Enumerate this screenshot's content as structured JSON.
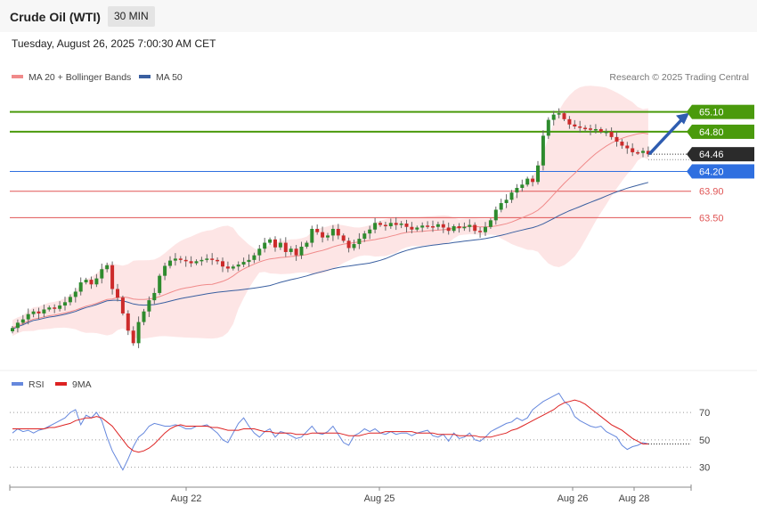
{
  "header": {
    "instrument": "Crude Oil (WTI)",
    "timeframe": "30 MIN"
  },
  "timestamp": "Tuesday, August 26, 2025 7:00:30 AM CET",
  "legend": {
    "ma20": "MA 20 + Bollinger Bands",
    "ma50": "MA 50",
    "credit": "Research © 2025 Trading Central"
  },
  "rsi_legend": {
    "rsi": "RSI",
    "ma9": "9MA"
  },
  "colors": {
    "ma20": "#f08a8a",
    "ma50": "#3a5fa0",
    "band": "#fde0e0",
    "bull": "#2e8b2e",
    "bear": "#cc2b2b",
    "resistance": "#4a9a0c",
    "pivot": "#2f6fe0",
    "support": "#e05555",
    "rsi": "#6688dd",
    "rsi_ma": "#dd2222"
  },
  "chart_data": [
    {
      "type": "candlestick",
      "title": "Crude Oil (WTI)",
      "x_ticks": [
        "Aug 22",
        "Aug 25",
        "Aug 26",
        "Aug 28"
      ],
      "ylim": [
        61.2,
        65.5
      ],
      "last_price": 64.46,
      "levels": [
        {
          "value": 65.1,
          "label": "65.10",
          "kind": "resistance"
        },
        {
          "value": 64.8,
          "label": "64.80",
          "kind": "resistance"
        },
        {
          "value": 64.2,
          "label": "64.20",
          "kind": "pivot"
        },
        {
          "value": 63.9,
          "label": "63.90",
          "kind": "support"
        },
        {
          "value": 63.5,
          "label": "63.50",
          "kind": "support"
        }
      ],
      "projection": {
        "from": 64.46,
        "to": 65.1
      },
      "close": [
        61.83,
        61.91,
        61.96,
        62.04,
        62.08,
        62.05,
        62.11,
        62.14,
        62.12,
        62.17,
        62.22,
        62.3,
        62.38,
        62.52,
        62.56,
        62.49,
        62.58,
        62.72,
        62.78,
        62.42,
        62.29,
        62.05,
        61.79,
        61.6,
        61.92,
        62.08,
        62.25,
        62.36,
        62.62,
        62.77,
        62.85,
        62.88,
        62.86,
        62.84,
        62.81,
        62.84,
        62.86,
        62.88,
        62.86,
        62.84,
        62.76,
        62.73,
        62.76,
        62.79,
        62.83,
        62.86,
        62.93,
        63.03,
        63.12,
        63.17,
        63.05,
        63.12,
        62.98,
        63.03,
        62.93,
        63.06,
        63.12,
        63.33,
        63.28,
        63.2,
        63.23,
        63.33,
        63.23,
        63.15,
        63.04,
        63.1,
        63.18,
        63.26,
        63.32,
        63.42,
        63.39,
        63.37,
        63.42,
        63.39,
        63.41,
        63.36,
        63.32,
        63.35,
        63.38,
        63.37,
        63.36,
        63.4,
        63.35,
        63.3,
        63.37,
        63.34,
        63.36,
        63.39,
        63.3,
        63.28,
        63.36,
        63.46,
        63.62,
        63.72,
        63.77,
        63.88,
        63.95,
        64.0,
        64.09,
        64.04,
        64.29,
        64.74,
        64.98,
        65.06,
        65.08,
        64.99,
        64.91,
        64.88,
        64.86,
        64.85,
        64.83,
        64.84,
        64.8,
        64.8,
        64.72,
        64.65,
        64.59,
        64.55,
        64.49,
        64.48,
        64.51,
        64.46
      ]
    },
    {
      "type": "line",
      "title": "RSI",
      "ylim": [
        20,
        85
      ],
      "y_ticks": [
        30,
        50,
        70
      ],
      "series": [
        {
          "name": "RSI",
          "values": [
            55,
            58,
            56,
            57,
            55,
            57,
            58,
            60,
            62,
            64,
            66,
            70,
            72,
            61,
            68,
            66,
            70,
            64,
            52,
            42,
            35,
            28,
            36,
            45,
            52,
            55,
            60,
            62,
            61,
            60,
            60,
            61,
            60,
            58,
            58,
            60,
            60,
            61,
            58,
            55,
            50,
            48,
            55,
            62,
            66,
            60,
            55,
            52,
            56,
            58,
            52,
            56,
            55,
            53,
            51,
            52,
            56,
            60,
            55,
            54,
            56,
            60,
            54,
            48,
            46,
            53,
            55,
            58,
            56,
            58,
            55,
            54,
            56,
            54,
            55,
            55,
            53,
            55,
            56,
            57,
            53,
            52,
            54,
            49,
            55,
            51,
            52,
            55,
            50,
            49,
            52,
            56,
            58,
            60,
            62,
            63,
            66,
            64,
            66,
            72,
            75,
            78,
            80,
            82,
            84,
            78,
            75,
            67,
            64,
            62,
            60,
            59,
            60,
            56,
            54,
            52,
            46,
            43,
            45,
            46,
            48,
            47
          ]
        },
        {
          "name": "9MA",
          "values": [
            58,
            58,
            58,
            58,
            58,
            58,
            58,
            59,
            59,
            60,
            61,
            62,
            64,
            65,
            66,
            66,
            67,
            66,
            63,
            60,
            55,
            50,
            45,
            42,
            41,
            42,
            44,
            47,
            51,
            55,
            58,
            60,
            61,
            60,
            60,
            60,
            60,
            60,
            59,
            59,
            58,
            57,
            57,
            57,
            58,
            58,
            58,
            57,
            56,
            56,
            55,
            55,
            55,
            55,
            54,
            54,
            54,
            55,
            55,
            55,
            55,
            55,
            55,
            54,
            53,
            53,
            53,
            54,
            55,
            55,
            55,
            56,
            56,
            56,
            56,
            56,
            56,
            55,
            55,
            55,
            55,
            54,
            54,
            54,
            54,
            53,
            53,
            53,
            53,
            52,
            52,
            52,
            53,
            54,
            55,
            57,
            58,
            60,
            62,
            64,
            66,
            68,
            70,
            72,
            75,
            77,
            78,
            79,
            78,
            76,
            73,
            70,
            67,
            64,
            61,
            59,
            57,
            54,
            51,
            49,
            47,
            47
          ]
        }
      ]
    }
  ]
}
